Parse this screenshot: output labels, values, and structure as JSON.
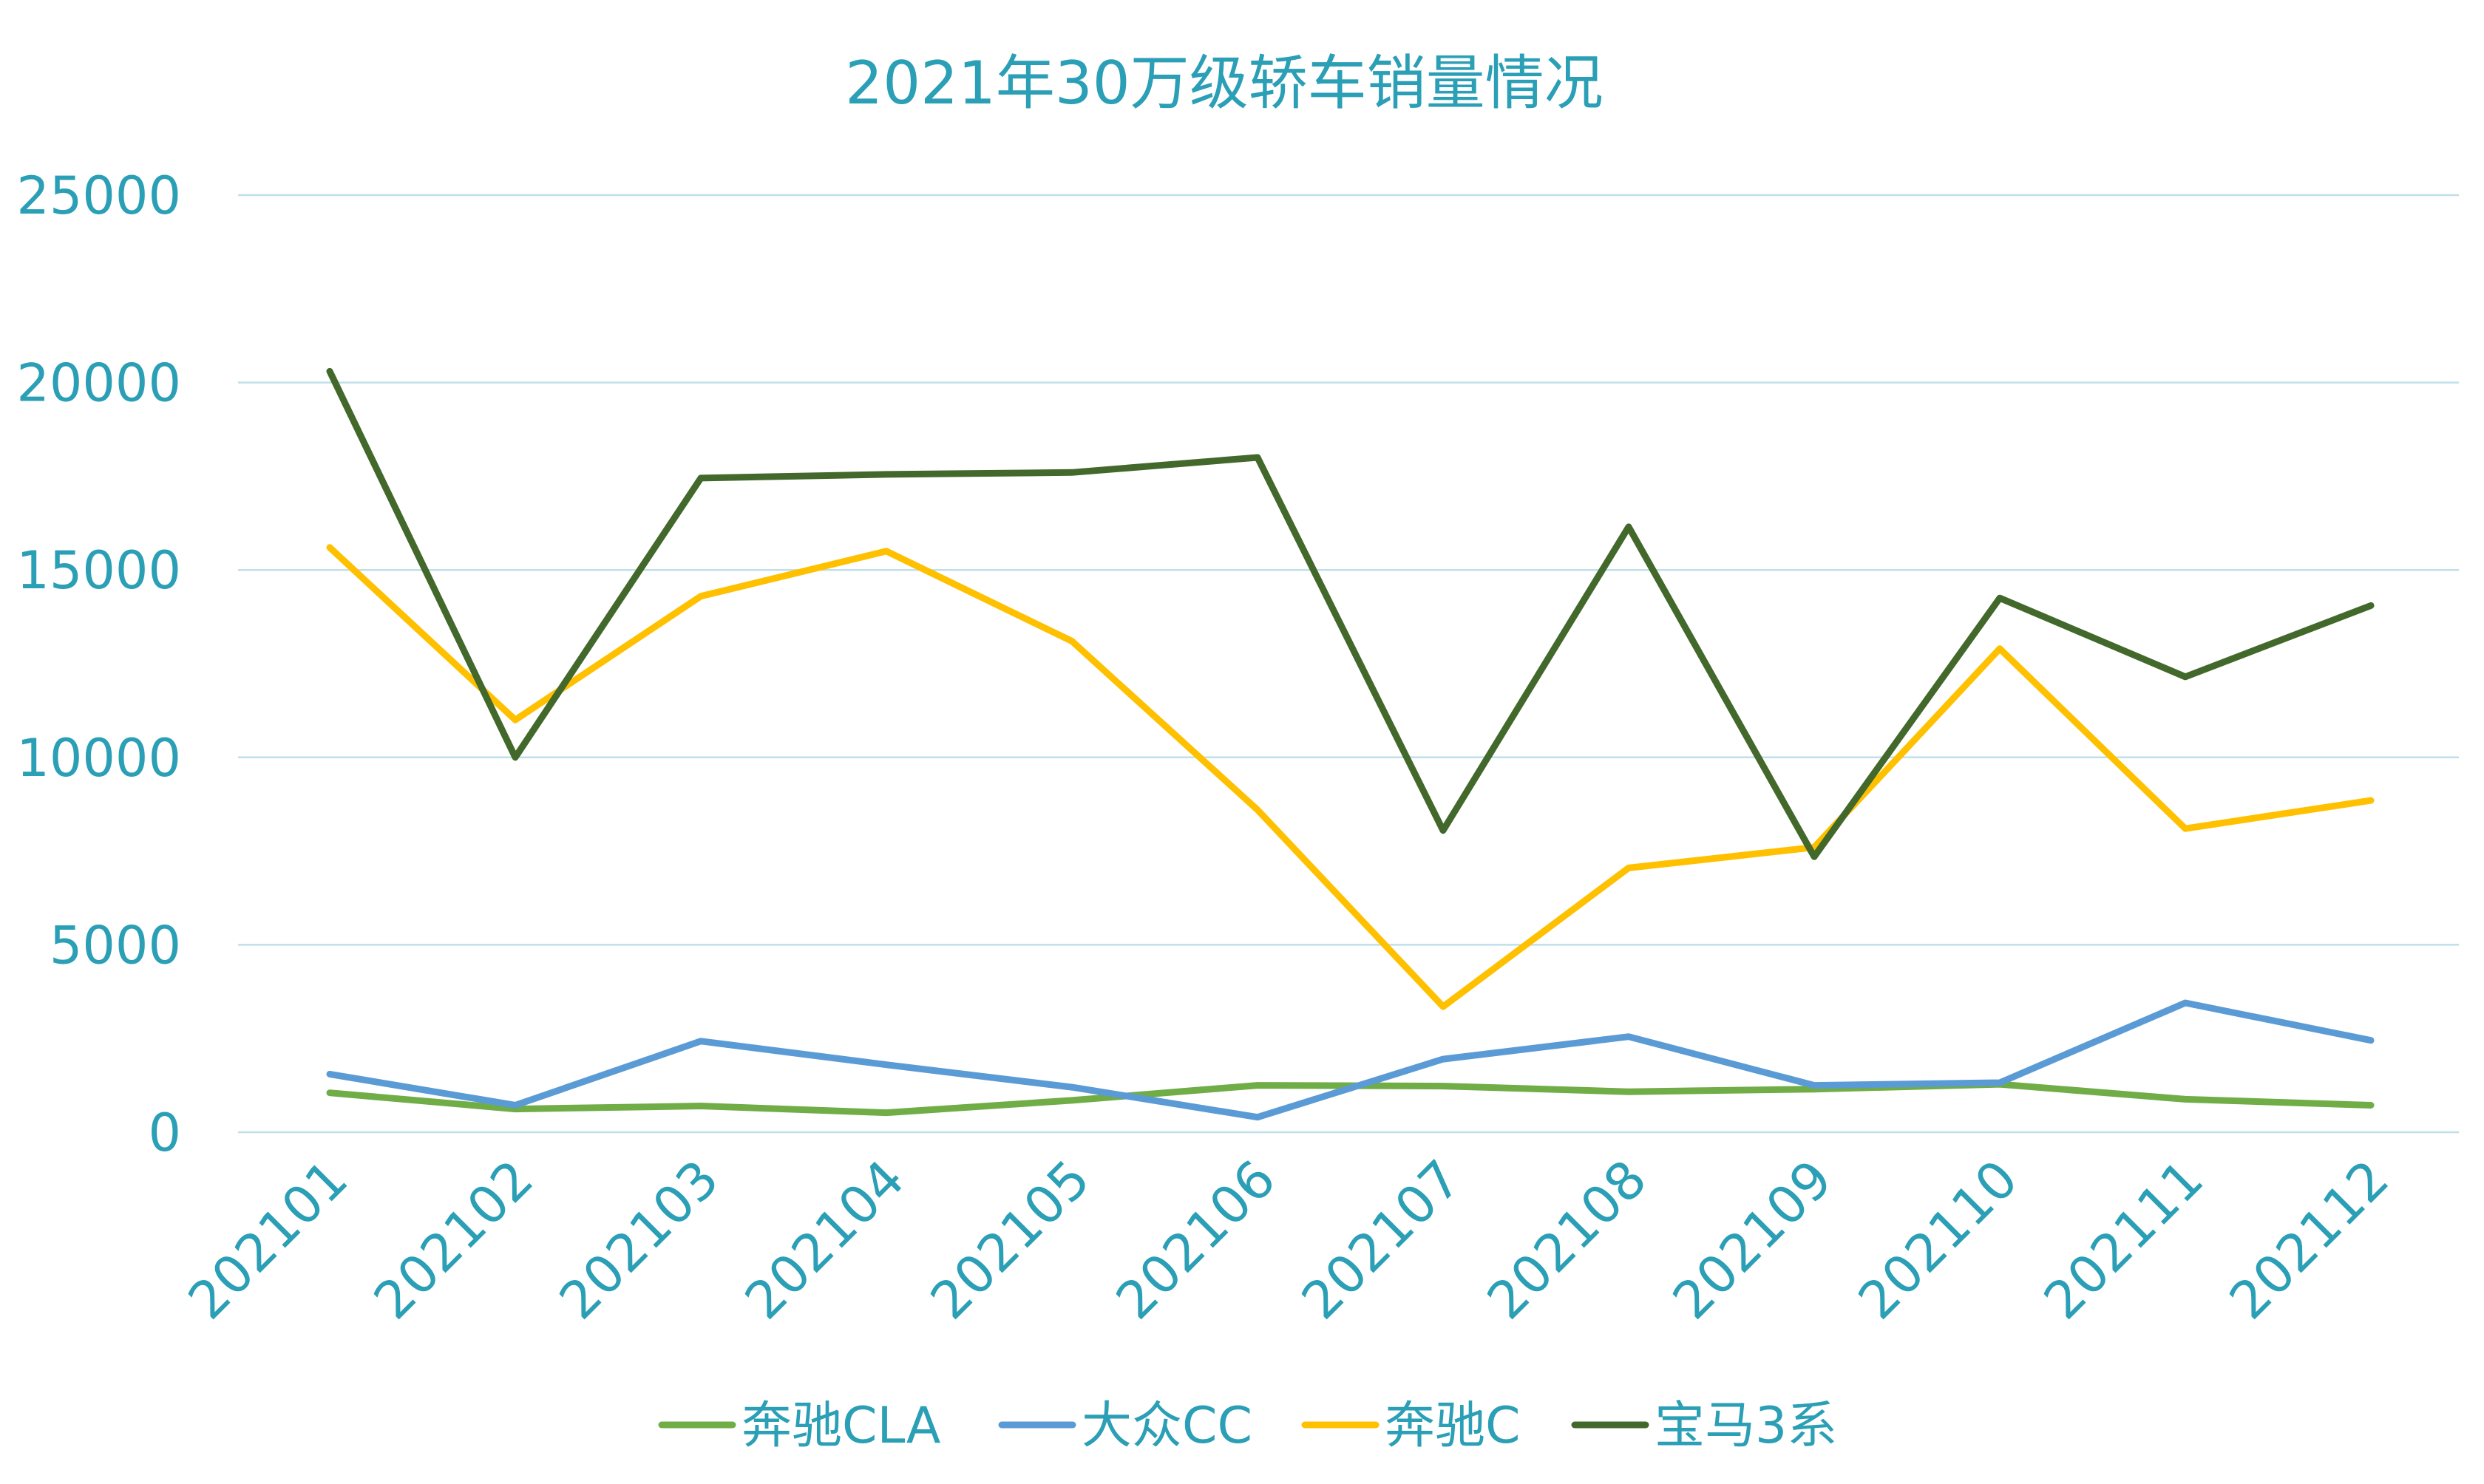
{
  "chart_data": {
    "type": "line",
    "title": "2021年30万级轿车销量情况",
    "xlabel": "",
    "ylabel": "",
    "ylim": [
      0,
      25000
    ],
    "yticks": [
      0,
      5000,
      10000,
      15000,
      20000,
      25000
    ],
    "categories": [
      "202101",
      "202102",
      "202103",
      "202104",
      "202105",
      "202106",
      "202107",
      "202108",
      "202109",
      "202110",
      "202111",
      "202112"
    ],
    "grid": true,
    "legend_position": "bottom",
    "series": [
      {
        "name": "奔驰CLA",
        "color": "#70ad47",
        "values": [
          1050,
          620,
          700,
          520,
          850,
          1250,
          1230,
          1080,
          1150,
          1280,
          880,
          720
        ]
      },
      {
        "name": "大众CC",
        "color": "#5b9bd5",
        "values": [
          1550,
          720,
          2430,
          1800,
          1200,
          400,
          1950,
          2550,
          1250,
          1320,
          3450,
          2450
        ]
      },
      {
        "name": "奔驰C",
        "color": "#ffc000",
        "values": [
          15600,
          11000,
          14300,
          15500,
          13100,
          8600,
          3350,
          7050,
          7600,
          12900,
          8100,
          8850
        ]
      },
      {
        "name": "宝马3系",
        "color": "#43682b",
        "values": [
          20300,
          10000,
          17450,
          17550,
          17600,
          18000,
          8050,
          16150,
          7350,
          14250,
          12150,
          14050
        ]
      }
    ]
  }
}
